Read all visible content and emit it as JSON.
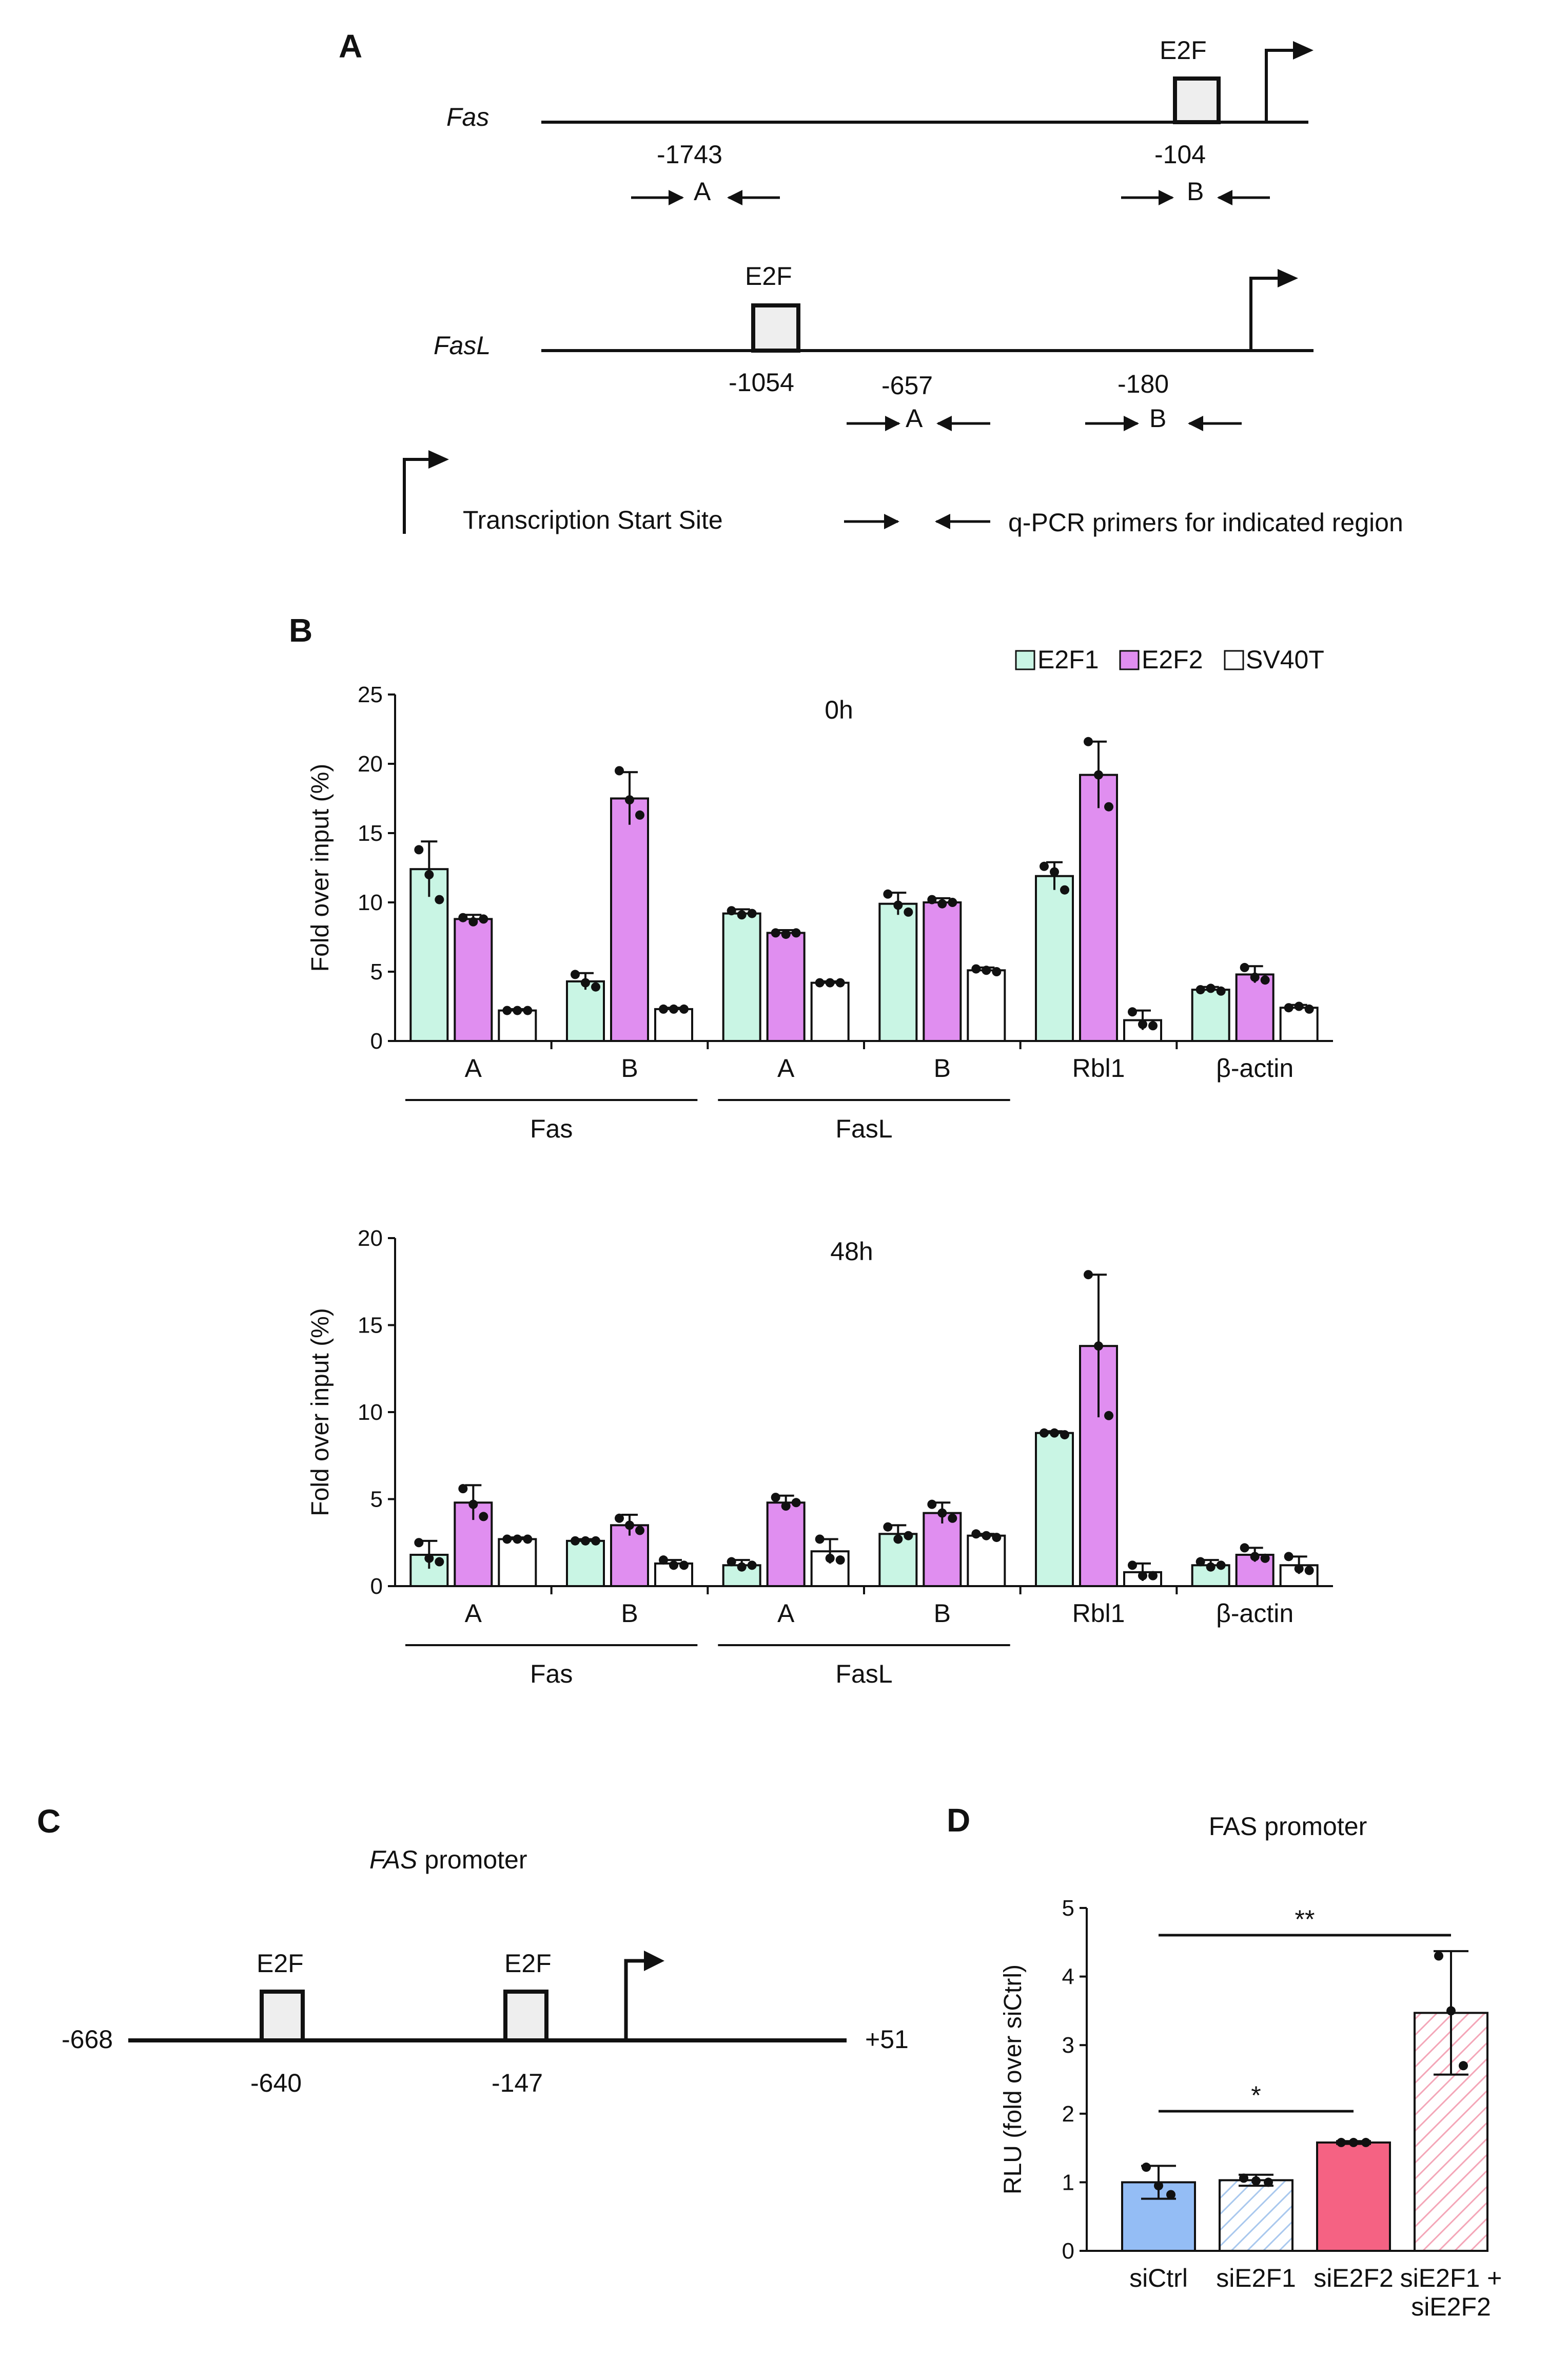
{
  "panel_a": {
    "letter": "A",
    "fas": {
      "gene": "Fas",
      "e2f": "E2F",
      "e2f_pos": "-104",
      "primer_a_pos": "-1743",
      "primer_a": "A",
      "primer_b": "B"
    },
    "fasl": {
      "gene": "FasL",
      "e2f": "E2F",
      "e2f_pos": "-1054",
      "primer_a_pos": "-657",
      "primer_b_pos": "-180",
      "primer_a": "A",
      "primer_b": "B"
    },
    "legend": {
      "tss": "Transcription Start Site",
      "primers": "q-PCR primers for indicated region"
    }
  },
  "panel_b": {
    "letter": "B",
    "legend": [
      "E2F1",
      "E2F2",
      "SV40T"
    ],
    "colors": {
      "E2F1": "#c9f5e4",
      "E2F2": "#e08ef0",
      "SV40T": "#ffffff"
    }
  },
  "panel_c": {
    "letter": "C",
    "title_gene": "FAS",
    "title_rest": " promoter",
    "start": "-668",
    "end": "+51",
    "e2f_label": "E2F",
    "site1": "-640",
    "site2": "-147"
  },
  "panel_d": {
    "letter": "D",
    "sig_upper": "**",
    "sig_lower": "*"
  },
  "chart_data": [
    {
      "type": "bar",
      "title": "0h",
      "ylabel": "Fold over input (%)",
      "ylim": [
        0,
        25
      ],
      "yticks": [
        0,
        5,
        10,
        15,
        20,
        25
      ],
      "categories": [
        "A",
        "B",
        "A",
        "B",
        "Rbl1",
        "β-actin"
      ],
      "groups": [
        {
          "label": "Fas",
          "span": [
            0,
            1
          ]
        },
        {
          "label": "FasL",
          "span": [
            2,
            3
          ]
        }
      ],
      "series": [
        {
          "name": "E2F1",
          "values": [
            12.4,
            4.3,
            9.2,
            9.9,
            11.9,
            3.7
          ],
          "err": [
            2.0,
            0.6,
            0.3,
            0.8,
            1.0,
            0.2
          ],
          "points": [
            [
              13.8,
              12.0,
              10.2
            ],
            [
              4.8,
              4.2,
              3.9
            ],
            [
              9.4,
              9.1,
              9.2
            ],
            [
              10.6,
              9.8,
              9.3
            ],
            [
              12.6,
              12.2,
              10.9
            ],
            [
              3.7,
              3.8,
              3.6
            ]
          ]
        },
        {
          "name": "E2F2",
          "values": [
            8.8,
            17.5,
            7.8,
            10.0,
            19.2,
            4.8
          ],
          "err": [
            0.3,
            1.9,
            0.2,
            0.3,
            2.4,
            0.6
          ],
          "points": [
            [
              8.9,
              8.6,
              8.8
            ],
            [
              19.5,
              17.4,
              16.3
            ],
            [
              7.8,
              7.7,
              7.8
            ],
            [
              10.2,
              9.9,
              10.0
            ],
            [
              21.6,
              19.2,
              16.9
            ],
            [
              5.3,
              4.6,
              4.4
            ]
          ]
        },
        {
          "name": "SV40T",
          "values": [
            2.2,
            2.3,
            4.2,
            5.1,
            1.5,
            2.4
          ],
          "err": [
            0.1,
            0.1,
            0.1,
            0.2,
            0.7,
            0.2
          ],
          "points": [
            [
              2.2,
              2.2,
              2.2
            ],
            [
              2.3,
              2.3,
              2.3
            ],
            [
              4.2,
              4.2,
              4.2
            ],
            [
              5.2,
              5.1,
              5.0
            ],
            [
              2.1,
              1.2,
              1.1
            ],
            [
              2.4,
              2.5,
              2.3
            ]
          ]
        }
      ]
    },
    {
      "type": "bar",
      "title": "48h",
      "ylabel": "Fold over input (%)",
      "ylim": [
        0,
        20
      ],
      "yticks": [
        0,
        5,
        10,
        15,
        20
      ],
      "categories": [
        "A",
        "B",
        "A",
        "B",
        "Rbl1",
        "β-actin"
      ],
      "groups": [
        {
          "label": "Fas",
          "span": [
            0,
            1
          ]
        },
        {
          "label": "FasL",
          "span": [
            2,
            3
          ]
        }
      ],
      "series": [
        {
          "name": "E2F1",
          "values": [
            1.8,
            2.6,
            1.2,
            3.0,
            8.8,
            1.2
          ],
          "err": [
            0.8,
            0.1,
            0.3,
            0.5,
            0.1,
            0.3
          ],
          "points": [
            [
              2.5,
              1.6,
              1.4
            ],
            [
              2.6,
              2.6,
              2.6
            ],
            [
              1.4,
              1.1,
              1.2
            ],
            [
              3.4,
              2.7,
              2.9
            ],
            [
              8.8,
              8.8,
              8.7
            ],
            [
              1.4,
              1.1,
              1.2
            ]
          ]
        },
        {
          "name": "E2F2",
          "values": [
            4.8,
            3.5,
            4.8,
            4.2,
            13.8,
            1.8
          ],
          "err": [
            1.0,
            0.6,
            0.4,
            0.6,
            4.1,
            0.4
          ],
          "points": [
            [
              5.6,
              4.7,
              4.0
            ],
            [
              3.9,
              3.5,
              3.2
            ],
            [
              5.1,
              4.6,
              4.8
            ],
            [
              4.7,
              4.2,
              3.9
            ],
            [
              17.9,
              13.8,
              9.8
            ],
            [
              2.2,
              1.7,
              1.6
            ]
          ]
        },
        {
          "name": "SV40T",
          "values": [
            2.7,
            1.3,
            2.0,
            2.9,
            0.8,
            1.2
          ],
          "err": [
            0.1,
            0.2,
            0.7,
            0.1,
            0.5,
            0.5
          ],
          "points": [
            [
              2.7,
              2.7,
              2.7
            ],
            [
              1.5,
              1.2,
              1.2
            ],
            [
              2.7,
              1.6,
              1.5
            ],
            [
              3.0,
              2.9,
              2.8
            ],
            [
              1.2,
              0.6,
              0.6
            ],
            [
              1.7,
              1.0,
              0.9
            ]
          ]
        }
      ]
    },
    {
      "type": "bar",
      "title": "FAS promoter",
      "ylabel": "RLU (fold over siCtrl)",
      "ylim": [
        0,
        5
      ],
      "yticks": [
        0,
        1,
        2,
        3,
        4,
        5
      ],
      "categories": [
        "siCtrl",
        "siE2F1",
        "siE2F2",
        "siE2F1 + siE2F2"
      ],
      "series": [
        {
          "name": "RLU",
          "values": [
            1.0,
            1.03,
            1.58,
            3.47
          ],
          "err": [
            0.24,
            0.08,
            0.02,
            0.9
          ],
          "points": [
            [
              1.22,
              0.95,
              0.82
            ],
            [
              1.06,
              1.02,
              1.0
            ],
            [
              1.58,
              1.58,
              1.58
            ],
            [
              4.3,
              3.5,
              2.7
            ]
          ],
          "colors": [
            "#94bdf5",
            "#cfe2f7",
            "#f56283",
            "#fbc4cf"
          ],
          "hatched": [
            false,
            true,
            false,
            true
          ]
        }
      ]
    }
  ]
}
